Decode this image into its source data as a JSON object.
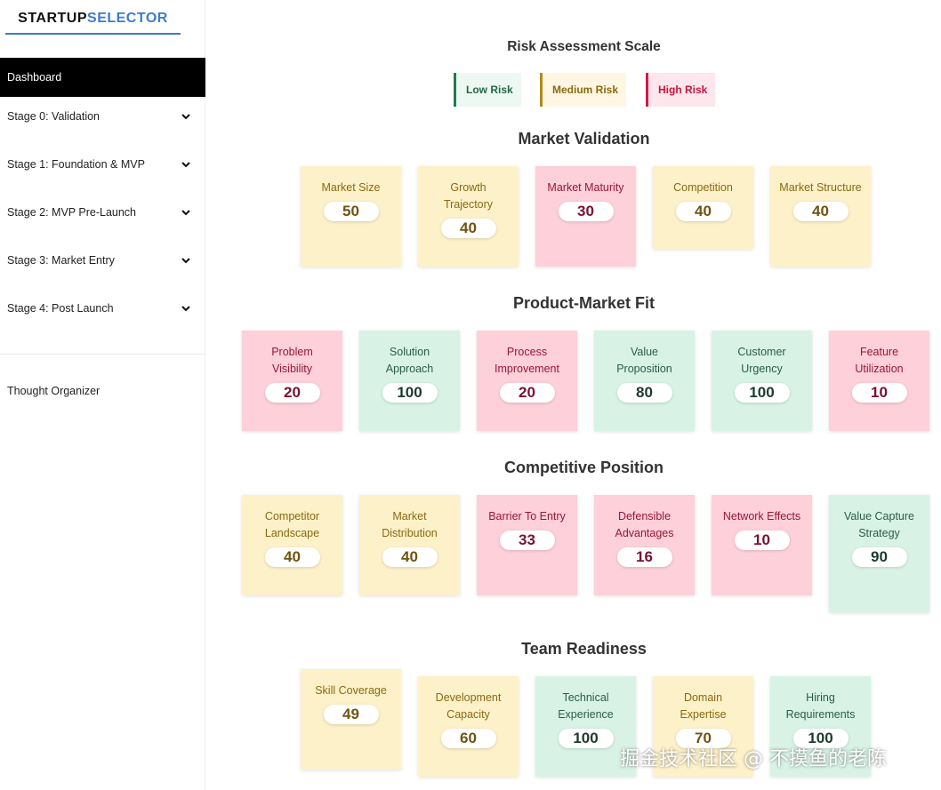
{
  "sidebar": {
    "logo": {
      "part1": "STARTUP",
      "part2": "SELECTOR"
    },
    "active": "Dashboard",
    "items": [
      {
        "label": "Stage 0: Validation",
        "icon": "chevron-down-icon"
      },
      {
        "label": "Stage 1: Foundation & MVP",
        "icon": "chevron-down-icon"
      },
      {
        "label": "Stage 2: MVP Pre-Launch",
        "icon": "chevron-down-icon"
      },
      {
        "label": "Stage 3: Market Entry",
        "icon": "chevron-down-icon"
      },
      {
        "label": "Stage 4: Post Launch",
        "icon": "chevron-down-icon"
      }
    ],
    "extra": "Thought Organizer"
  },
  "scale": {
    "title": "Risk Assessment Scale",
    "low": "Low Risk",
    "medium": "Medium Risk",
    "high": "High Risk"
  },
  "colors": {
    "low": "#d8f2e6",
    "medium": "#fdf1c9",
    "high": "#fdd0da",
    "accent": "#3b7bd0"
  },
  "sections": [
    {
      "title": "Market Validation",
      "cards": [
        {
          "label": "Market Size",
          "score": "50",
          "risk": "medium"
        },
        {
          "label": "Growth Trajectory",
          "score": "40",
          "risk": "medium"
        },
        {
          "label": "Market Maturity",
          "score": "30",
          "risk": "high"
        },
        {
          "label": "Competition",
          "score": "40",
          "risk": "medium"
        },
        {
          "label": "Market Structure",
          "score": "40",
          "risk": "medium"
        }
      ]
    },
    {
      "title": "Product-Market Fit",
      "cards": [
        {
          "label": "Problem Visibility",
          "score": "20",
          "risk": "high"
        },
        {
          "label": "Solution Approach",
          "score": "100",
          "risk": "low"
        },
        {
          "label": "Process Improvement",
          "score": "20",
          "risk": "high"
        },
        {
          "label": "Value Proposition",
          "score": "80",
          "risk": "low"
        },
        {
          "label": "Customer Urgency",
          "score": "100",
          "risk": "low"
        },
        {
          "label": "Feature Utilization",
          "score": "10",
          "risk": "high"
        }
      ]
    },
    {
      "title": "Competitive Position",
      "cards": [
        {
          "label": "Competitor Landscape",
          "score": "40",
          "risk": "medium"
        },
        {
          "label": "Market Distribution",
          "score": "40",
          "risk": "medium"
        },
        {
          "label": "Barrier To Entry",
          "score": "33",
          "risk": "high"
        },
        {
          "label": "Defensible Advantages",
          "score": "16",
          "risk": "high"
        },
        {
          "label": "Network Effects",
          "score": "10",
          "risk": "high"
        },
        {
          "label": "Value Capture Strategy",
          "score": "90",
          "risk": "low"
        }
      ]
    },
    {
      "title": "Team Readiness",
      "cards": [
        {
          "label": "Skill Coverage",
          "score": "49",
          "risk": "medium"
        },
        {
          "label": "Development Capacity",
          "score": "60",
          "risk": "medium"
        },
        {
          "label": "Technical Experience",
          "score": "100",
          "risk": "low"
        },
        {
          "label": "Domain Expertise",
          "score": "70",
          "risk": "medium"
        },
        {
          "label": "Hiring Requirements",
          "score": "100",
          "risk": "low"
        }
      ]
    }
  ],
  "watermark": "掘金技术社区 @ 不摸鱼的老陈"
}
